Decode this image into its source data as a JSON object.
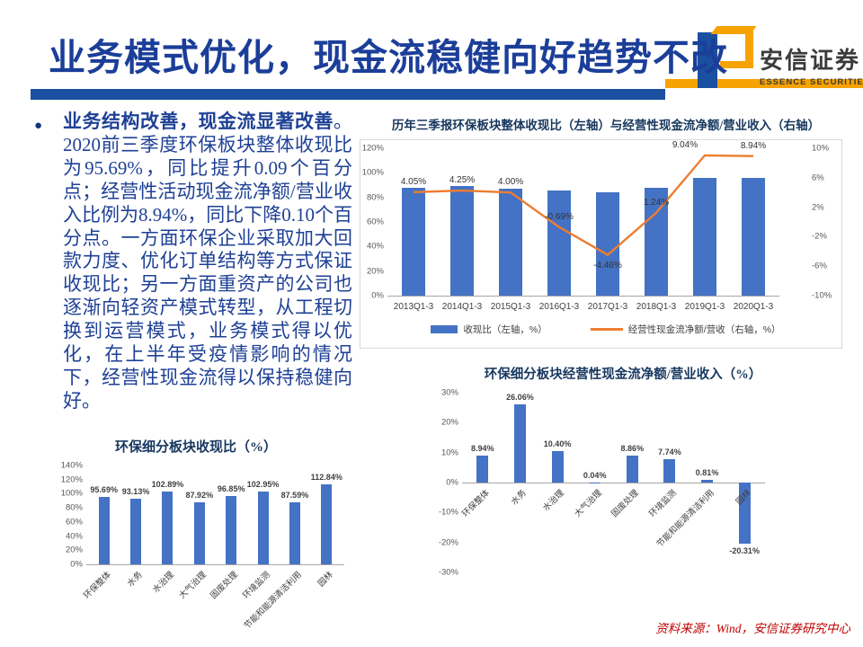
{
  "header": {
    "title": "业务模式优化，现金流稳健向好趋势不改",
    "logo": {
      "cn": "安信证券",
      "en": "ESSENCE SECURITIES"
    }
  },
  "body": {
    "bullet_glyph": "●",
    "bullet_lead": "业务结构改善，现金流显著改善",
    "bullet_text": "。2020前三季度环保板块整体收现比为95.69%，同比提升0.09个百分点；经营性活动现金流净额/营业收入比例为8.94%，同比下降0.10个百分点。一方面环保企业采取加大回款力度、优化订单结构等方式保证收现比；另一方面重资产的公司也逐渐向轻资产模式转型，从工程切换到运营模式，业务模式得以优化，在上半年受疫情影响的情况下，经营性现金流得以保持稳健向好。"
  },
  "footer": {
    "source": "资料来源：Wind，安信证券研究中心"
  },
  "colors": {
    "brand_blue": "#1B3E99",
    "rule_blue": "#1B4FA0",
    "brand_orange": "#F6A200",
    "bar_blue": "#4472C4",
    "line_orange": "#ED7D31",
    "chart_title_navy": "#17375E",
    "body_text_blue": "#1E4095",
    "source_red": "#C00000"
  },
  "chart_data": [
    {
      "id": "overall-trend",
      "type": "bar+line",
      "title": "历年三季报环保板块整体收现比（左轴）与经营性现金流净额/营业收入（右轴）",
      "categories": [
        "2013Q1-3",
        "2014Q1-3",
        "2015Q1-3",
        "2016Q1-3",
        "2017Q1-3",
        "2018Q1-3",
        "2019Q1-3",
        "2020Q1-3"
      ],
      "series": [
        {
          "name": "收现比（左轴，%）",
          "type": "bar",
          "axis": "left",
          "color": "#4472C4",
          "values": [
            88,
            89,
            87,
            85.5,
            84.5,
            87.5,
            95.6,
            95.69
          ]
        },
        {
          "name": "经营性现金流净额/营收（右轴，%）",
          "type": "line",
          "axis": "right",
          "color": "#ED7D31",
          "values": [
            4.05,
            4.25,
            4.0,
            -0.69,
            -4.46,
            1.24,
            9.04,
            8.94
          ],
          "labels": [
            "4.05%",
            "4.25%",
            "4.00%",
            "-0.69%",
            "-4.46%",
            "1.24%",
            "9.04%",
            "8.94%"
          ]
        }
      ],
      "left_axis": {
        "min": 0,
        "max": 120,
        "step": 20
      },
      "right_axis": {
        "min": -10,
        "max": 10,
        "step": 4
      },
      "legend": [
        "收现比（左轴，%）",
        "经营性现金流净额/营收（右轴，%）"
      ],
      "legend_position": "bottom",
      "grid": false
    },
    {
      "id": "segment-collection-ratio",
      "type": "bar",
      "title": "环保细分板块收现比（%）",
      "categories": [
        "环保整体",
        "水务",
        "水治理",
        "大气治理",
        "固废处理",
        "环境监测",
        "节能和能源清洁利用",
        "园林"
      ],
      "values": [
        95.69,
        93.13,
        102.89,
        87.92,
        96.85,
        102.95,
        87.59,
        112.84
      ],
      "labels": [
        "95.69%",
        "93.13%",
        "102.89%",
        "87.92%",
        "96.85%",
        "102.95%",
        "87.59%",
        "112.84%"
      ],
      "color": "#4472C4",
      "ylim": [
        0,
        140
      ],
      "step": 20,
      "grid": false
    },
    {
      "id": "segment-ocf-to-revenue",
      "type": "bar",
      "title": "环保细分板块经营性现金流净额/营业收入（%）",
      "categories": [
        "环保整体",
        "水务",
        "水治理",
        "大气治理",
        "固废处理",
        "环境监测",
        "节能和能源清洁利用",
        "园林"
      ],
      "values": [
        8.94,
        26.06,
        10.4,
        0.04,
        8.86,
        7.74,
        0.81,
        -20.31
      ],
      "labels": [
        "8.94%",
        "26.06%",
        "10.40%",
        "0.04%",
        "8.86%",
        "7.74%",
        "0.81%",
        "-20.31%"
      ],
      "color": "#4472C4",
      "ylim": [
        -30,
        30
      ],
      "step": 10,
      "grid": false
    }
  ]
}
